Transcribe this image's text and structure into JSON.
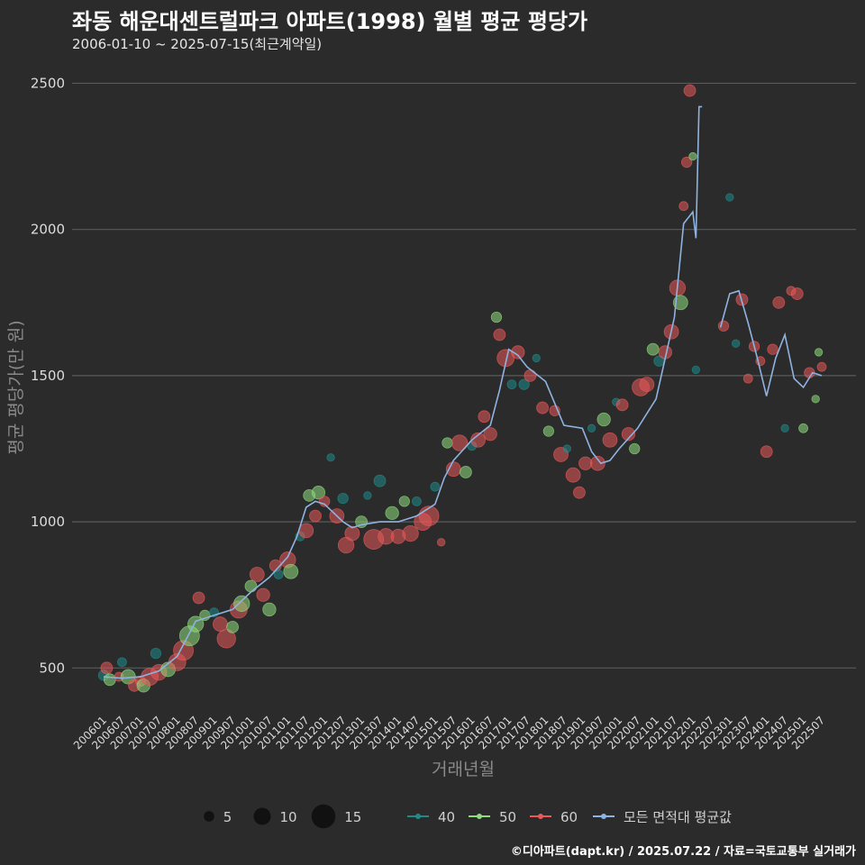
{
  "header": {
    "title": "좌동 해운대센트럴파크 아파트(1998) 월별 평균 평당가",
    "subtitle": "2006-01-10 ~ 2025-07-15(최근계약일)"
  },
  "footer": {
    "credit": "©디아파트(dapt.kr) / 2025.07.22 / 자료=국토교통부 실거래가"
  },
  "colors": {
    "background": "#2b2b2c",
    "grid": "#5a5a5a",
    "area40": "#1f8a8a",
    "area50": "#8fdc7e",
    "area60": "#e85a5a",
    "avg_line": "#8fb3e0",
    "size_marker": "#111111"
  },
  "chart_data": {
    "type": "scatter",
    "title": "좌동 해운대센트럴파크 아파트(1998) 월별 평균 평당가",
    "xlabel": "거래년월",
    "ylabel": "평균 평당가(만 원)",
    "ylim": [
      350,
      2600
    ],
    "yticks": [
      500,
      1000,
      1500,
      2000,
      2500
    ],
    "xticks": [
      "200601",
      "200607",
      "200701",
      "200707",
      "200801",
      "200807",
      "200901",
      "200907",
      "201001",
      "201007",
      "201101",
      "201107",
      "201201",
      "201207",
      "201301",
      "201307",
      "201401",
      "201407",
      "201501",
      "201507",
      "201601",
      "201607",
      "201701",
      "201707",
      "201801",
      "201807",
      "201901",
      "201907",
      "202001",
      "202007",
      "202101",
      "202107",
      "202201",
      "202207",
      "202301",
      "202307",
      "202401",
      "202407",
      "202501",
      "202507"
    ],
    "legend": {
      "size_entries": [
        {
          "label": "5",
          "size": 5
        },
        {
          "label": "10",
          "size": 10
        },
        {
          "label": "15",
          "size": 15
        }
      ],
      "series_entries": [
        {
          "label": "40",
          "key": "area40"
        },
        {
          "label": "50",
          "key": "area50"
        },
        {
          "label": "60",
          "key": "area60"
        },
        {
          "label": "모든 면적대 평균값",
          "key": "avg_line"
        }
      ],
      "placement": "bottom"
    },
    "avg_line_points": [
      [
        "2006-01",
        470
      ],
      [
        "2006-07",
        465
      ],
      [
        "2007-01",
        470
      ],
      [
        "2007-07",
        490
      ],
      [
        "2008-01",
        540
      ],
      [
        "2008-04",
        600
      ],
      [
        "2008-07",
        660
      ],
      [
        "2009-01",
        680
      ],
      [
        "2009-07",
        700
      ],
      [
        "2010-01",
        760
      ],
      [
        "2010-07",
        810
      ],
      [
        "2011-01",
        880
      ],
      [
        "2011-04",
        950
      ],
      [
        "2011-07",
        1050
      ],
      [
        "2011-10",
        1070
      ],
      [
        "2012-01",
        1060
      ],
      [
        "2012-07",
        1000
      ],
      [
        "2012-10",
        980
      ],
      [
        "2013-01",
        990
      ],
      [
        "2013-07",
        1000
      ],
      [
        "2014-01",
        1000
      ],
      [
        "2014-07",
        1020
      ],
      [
        "2015-01",
        1060
      ],
      [
        "2015-04",
        1150
      ],
      [
        "2015-07",
        1210
      ],
      [
        "2016-01",
        1280
      ],
      [
        "2016-07",
        1330
      ],
      [
        "2016-10",
        1450
      ],
      [
        "2017-01",
        1590
      ],
      [
        "2017-04",
        1570
      ],
      [
        "2017-07",
        1530
      ],
      [
        "2018-01",
        1480
      ],
      [
        "2018-07",
        1330
      ],
      [
        "2019-01",
        1320
      ],
      [
        "2019-04",
        1240
      ],
      [
        "2019-07",
        1200
      ],
      [
        "2019-10",
        1210
      ],
      [
        "2020-01",
        1250
      ],
      [
        "2020-07",
        1320
      ],
      [
        "2021-01",
        1420
      ],
      [
        "2021-04",
        1560
      ],
      [
        "2021-07",
        1700
      ],
      [
        "2021-10",
        2020
      ],
      [
        "2022-01",
        2060
      ],
      [
        "2022-02",
        1970
      ],
      [
        "2022-03",
        2420
      ],
      [
        "2022-04",
        2420
      ]
    ],
    "avg_line_points_2": [
      [
        "2022-10",
        1665
      ],
      [
        "2023-01",
        1780
      ],
      [
        "2023-04",
        1790
      ],
      [
        "2023-07",
        1680
      ],
      [
        "2023-10",
        1560
      ],
      [
        "2024-01",
        1430
      ],
      [
        "2024-04",
        1560
      ],
      [
        "2024-07",
        1640
      ],
      [
        "2024-10",
        1490
      ],
      [
        "2025-01",
        1460
      ],
      [
        "2025-04",
        1510
      ],
      [
        "2025-07",
        1500
      ]
    ],
    "points": [
      [
        "2006-01",
        40,
        475,
        5
      ],
      [
        "2006-02",
        60,
        500,
        6
      ],
      [
        "2006-03",
        50,
        460,
        6
      ],
      [
        "2006-06",
        60,
        470,
        4
      ],
      [
        "2006-07",
        40,
        520,
        4
      ],
      [
        "2006-09",
        50,
        470,
        8
      ],
      [
        "2006-11",
        60,
        440,
        6
      ],
      [
        "2007-01",
        60,
        455,
        5
      ],
      [
        "2007-02",
        50,
        440,
        7
      ],
      [
        "2007-04",
        60,
        470,
        10
      ],
      [
        "2007-06",
        40,
        550,
        5
      ],
      [
        "2007-07",
        60,
        485,
        9
      ],
      [
        "2007-10",
        50,
        495,
        8
      ],
      [
        "2008-01",
        60,
        520,
        10
      ],
      [
        "2008-03",
        60,
        560,
        12
      ],
      [
        "2008-05",
        50,
        610,
        12
      ],
      [
        "2008-07",
        50,
        650,
        9
      ],
      [
        "2008-08",
        60,
        740,
        6
      ],
      [
        "2008-10",
        50,
        680,
        5
      ],
      [
        "2009-01",
        40,
        690,
        4
      ],
      [
        "2009-03",
        60,
        650,
        8
      ],
      [
        "2009-05",
        60,
        600,
        11
      ],
      [
        "2009-07",
        50,
        640,
        6
      ],
      [
        "2009-09",
        60,
        700,
        10
      ],
      [
        "2009-10",
        50,
        720,
        9
      ],
      [
        "2010-01",
        50,
        780,
        6
      ],
      [
        "2010-03",
        60,
        820,
        8
      ],
      [
        "2010-05",
        60,
        750,
        7
      ],
      [
        "2010-07",
        50,
        700,
        7
      ],
      [
        "2010-09",
        60,
        850,
        6
      ],
      [
        "2010-10",
        40,
        820,
        4
      ],
      [
        "2011-01",
        60,
        870,
        9
      ],
      [
        "2011-02",
        50,
        830,
        8
      ],
      [
        "2011-05",
        40,
        950,
        4
      ],
      [
        "2011-07",
        60,
        970,
        8
      ],
      [
        "2011-08",
        50,
        1090,
        6
      ],
      [
        "2011-10",
        60,
        1020,
        6
      ],
      [
        "2011-11",
        50,
        1100,
        7
      ],
      [
        "2012-01",
        60,
        1070,
        5
      ],
      [
        "2012-03",
        40,
        1220,
        3
      ],
      [
        "2012-05",
        60,
        1020,
        8
      ],
      [
        "2012-07",
        40,
        1080,
        5
      ],
      [
        "2012-08",
        60,
        920,
        9
      ],
      [
        "2012-10",
        60,
        960,
        8
      ],
      [
        "2013-01",
        50,
        1000,
        6
      ],
      [
        "2013-03",
        40,
        1090,
        3
      ],
      [
        "2013-05",
        60,
        940,
        12
      ],
      [
        "2013-07",
        40,
        1140,
        6
      ],
      [
        "2013-09",
        60,
        950,
        9
      ],
      [
        "2013-11",
        50,
        1030,
        7
      ],
      [
        "2014-01",
        60,
        950,
        8
      ],
      [
        "2014-03",
        50,
        1070,
        5
      ],
      [
        "2014-05",
        60,
        960,
        9
      ],
      [
        "2014-07",
        40,
        1070,
        4
      ],
      [
        "2014-09",
        60,
        1000,
        10
      ],
      [
        "2014-11",
        60,
        1020,
        12
      ],
      [
        "2015-01",
        40,
        1120,
        4
      ],
      [
        "2015-03",
        60,
        930,
        3
      ],
      [
        "2015-05",
        50,
        1270,
        5
      ],
      [
        "2015-07",
        60,
        1180,
        8
      ],
      [
        "2015-09",
        60,
        1270,
        9
      ],
      [
        "2015-11",
        50,
        1170,
        6
      ],
      [
        "2016-01",
        40,
        1260,
        4
      ],
      [
        "2016-03",
        60,
        1280,
        8
      ],
      [
        "2016-05",
        60,
        1360,
        6
      ],
      [
        "2016-07",
        60,
        1300,
        7
      ],
      [
        "2016-09",
        50,
        1700,
        5
      ],
      [
        "2016-10",
        60,
        1640,
        6
      ],
      [
        "2016-12",
        60,
        1560,
        10
      ],
      [
        "2017-02",
        40,
        1470,
        4
      ],
      [
        "2017-04",
        60,
        1580,
        7
      ],
      [
        "2017-06",
        40,
        1470,
        5
      ],
      [
        "2017-08",
        60,
        1500,
        6
      ],
      [
        "2017-10",
        40,
        1560,
        3
      ],
      [
        "2017-12",
        60,
        1390,
        6
      ],
      [
        "2018-02",
        50,
        1310,
        5
      ],
      [
        "2018-04",
        60,
        1380,
        5
      ],
      [
        "2018-06",
        60,
        1230,
        8
      ],
      [
        "2018-08",
        40,
        1250,
        3
      ],
      [
        "2018-10",
        60,
        1160,
        8
      ],
      [
        "2018-12",
        60,
        1100,
        6
      ],
      [
        "2019-02",
        60,
        1200,
        7
      ],
      [
        "2019-04",
        40,
        1320,
        3
      ],
      [
        "2019-06",
        60,
        1200,
        8
      ],
      [
        "2019-08",
        50,
        1350,
        7
      ],
      [
        "2019-10",
        60,
        1280,
        8
      ],
      [
        "2019-12",
        40,
        1410,
        3
      ],
      [
        "2020-02",
        60,
        1400,
        6
      ],
      [
        "2020-04",
        60,
        1300,
        7
      ],
      [
        "2020-06",
        50,
        1250,
        5
      ],
      [
        "2020-08",
        60,
        1460,
        10
      ],
      [
        "2020-10",
        60,
        1470,
        8
      ],
      [
        "2020-12",
        50,
        1590,
        6
      ],
      [
        "2021-02",
        40,
        1550,
        5
      ],
      [
        "2021-04",
        60,
        1580,
        7
      ],
      [
        "2021-06",
        60,
        1650,
        8
      ],
      [
        "2021-08",
        60,
        1800,
        9
      ],
      [
        "2021-09",
        50,
        1750,
        8
      ],
      [
        "2021-10",
        60,
        2080,
        4
      ],
      [
        "2021-11",
        60,
        2230,
        5
      ],
      [
        "2021-12",
        60,
        2475,
        6
      ],
      [
        "2022-01",
        50,
        2250,
        3
      ],
      [
        "2022-02",
        40,
        1520,
        3
      ],
      [
        "2022-11",
        60,
        1670,
        5
      ],
      [
        "2023-01",
        40,
        2110,
        3
      ],
      [
        "2023-03",
        40,
        1610,
        3
      ],
      [
        "2023-05",
        60,
        1760,
        6
      ],
      [
        "2023-07",
        60,
        1490,
        4
      ],
      [
        "2023-09",
        60,
        1600,
        5
      ],
      [
        "2023-11",
        60,
        1550,
        4
      ],
      [
        "2024-01",
        60,
        1240,
        6
      ],
      [
        "2024-03",
        60,
        1590,
        5
      ],
      [
        "2024-05",
        60,
        1750,
        6
      ],
      [
        "2024-07",
        40,
        1320,
        3
      ],
      [
        "2024-09",
        60,
        1790,
        4
      ],
      [
        "2024-11",
        60,
        1780,
        6
      ],
      [
        "2025-01",
        50,
        1320,
        4
      ],
      [
        "2025-03",
        60,
        1510,
        5
      ],
      [
        "2025-05",
        50,
        1420,
        3
      ],
      [
        "2025-06",
        50,
        1580,
        3
      ],
      [
        "2025-07",
        60,
        1530,
        4
      ]
    ]
  }
}
